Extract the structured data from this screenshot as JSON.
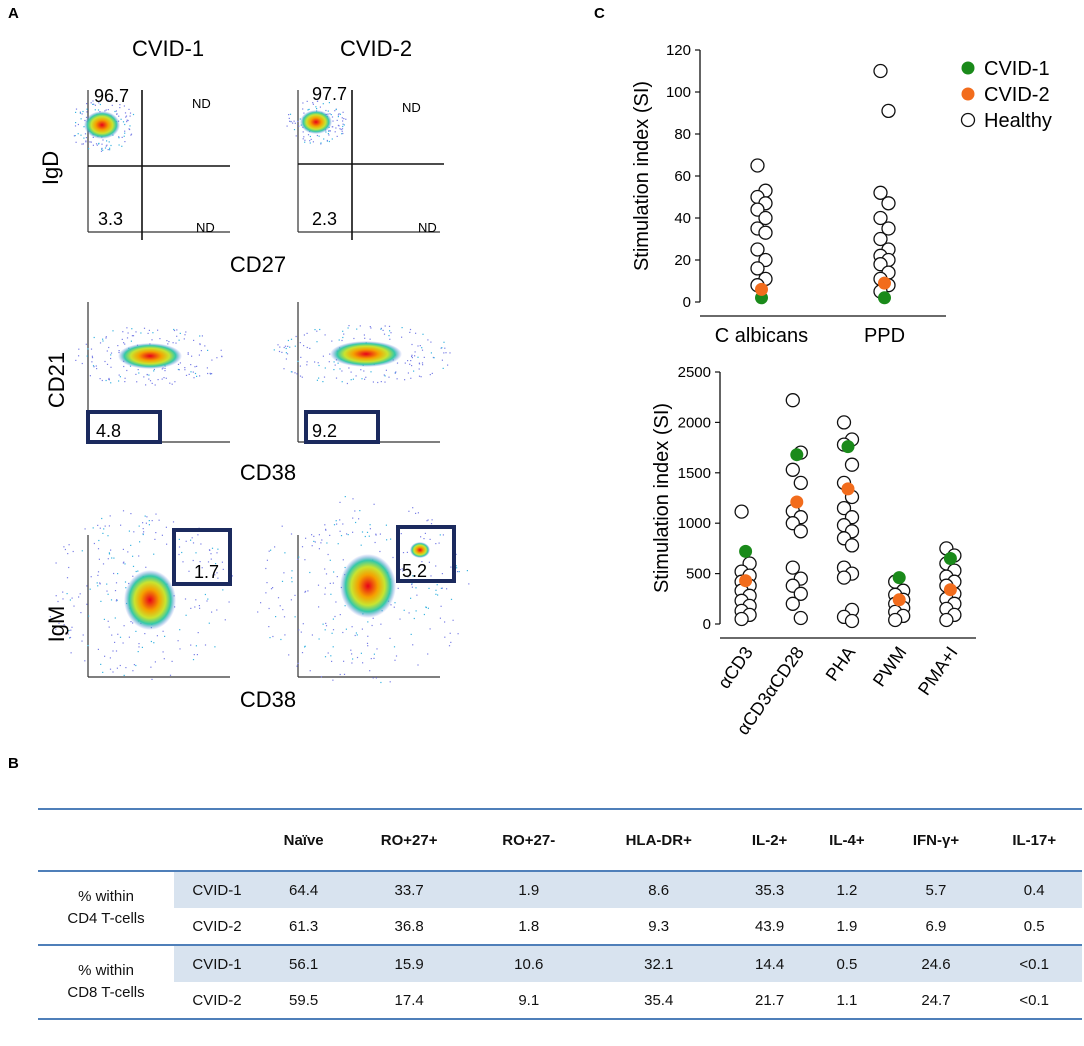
{
  "panels": {
    "a": "A",
    "b": "B",
    "c": "C"
  },
  "flow": {
    "columns": [
      "CVID-1",
      "CVID-2"
    ],
    "rows": [
      {
        "ylabel": "IgD",
        "xlabel": "CD27",
        "plots": [
          {
            "q_tl": "96.7",
            "q_tr": "ND",
            "q_bl": "3.3",
            "q_br": "ND"
          },
          {
            "q_tl": "97.7",
            "q_tr": "ND",
            "q_bl": "2.3",
            "q_br": "ND"
          }
        ]
      },
      {
        "ylabel": "CD21",
        "xlabel": "CD38",
        "plots": [
          {
            "gate": "4.8"
          },
          {
            "gate": "9.2"
          }
        ]
      },
      {
        "ylabel": "IgM",
        "xlabel": "CD38",
        "plots": [
          {
            "gate": "1.7"
          },
          {
            "gate": "5.2"
          }
        ]
      }
    ]
  },
  "table": {
    "headers": [
      "Naïve",
      "RO+27+",
      "RO+27-",
      "HLA-DR+",
      "IL-2+",
      "IL-4+",
      "IFN-γ+",
      "IL-17+"
    ],
    "groups": [
      {
        "label_line1": "% within",
        "label_line2": "CD4 T-cells",
        "rows": [
          {
            "name": "CVID-1",
            "values": [
              "64.4",
              "33.7",
              "1.9",
              "8.6",
              "35.3",
              "1.2",
              "5.7",
              "0.4"
            ]
          },
          {
            "name": "CVID-2",
            "values": [
              "61.3",
              "36.8",
              "1.8",
              "9.3",
              "43.9",
              "1.9",
              "6.9",
              "0.5"
            ]
          }
        ]
      },
      {
        "label_line1": "% within",
        "label_line2": "CD8 T-cells",
        "rows": [
          {
            "name": "CVID-1",
            "values": [
              "56.1",
              "15.9",
              "10.6",
              "32.1",
              "14.4",
              "0.5",
              "24.6",
              "<0.1"
            ]
          },
          {
            "name": "CVID-2",
            "values": [
              "59.5",
              "17.4",
              "9.1",
              "35.4",
              "21.7",
              "1.1",
              "24.7",
              "<0.1"
            ]
          }
        ]
      }
    ]
  },
  "colors": {
    "cvid1": "#1a8a1a",
    "cvid2": "#f26c1c",
    "healthy": "#ffffff",
    "gate": "#1b2a5e",
    "rule": "#4f7fb9",
    "stripe": "#d8e3ef"
  },
  "chart_data": [
    {
      "type": "scatter",
      "title": "",
      "xlabel": "",
      "ylabel": "Stimulation index (SI)",
      "categories": [
        "C albicans",
        "PPD"
      ],
      "ylim": [
        0,
        120
      ],
      "yticks": [
        0,
        20,
        40,
        60,
        80,
        100,
        120
      ],
      "legend": [
        "CVID-1",
        "CVID-2",
        "Healthy"
      ],
      "legend_position": "top-right",
      "series": [
        {
          "name": "Healthy",
          "values": [
            [
              65,
              53,
              50,
              47,
              44,
              40,
              35,
              33,
              25,
              20,
              16,
              11,
              8
            ],
            [
              110,
              91,
              52,
              47,
              40,
              35,
              30,
              25,
              22,
              20,
              18,
              14,
              11,
              8,
              5
            ]
          ]
        },
        {
          "name": "CVID-1",
          "values": [
            [
              2
            ],
            [
              2
            ]
          ]
        },
        {
          "name": "CVID-2",
          "values": [
            [
              6
            ],
            [
              9
            ]
          ]
        }
      ]
    },
    {
      "type": "scatter",
      "title": "",
      "xlabel": "",
      "ylabel": "Stimulation  index (SI)",
      "categories": [
        "αCD3",
        "αCD3αCD28",
        "PHA",
        "PWM",
        "PMA+I"
      ],
      "ylim": [
        0,
        2500
      ],
      "yticks": [
        0,
        500,
        1000,
        1500,
        2000,
        2500
      ],
      "series": [
        {
          "name": "Healthy",
          "values": [
            [
              1115,
              600,
              520,
              480,
              420,
              380,
              330,
              280,
              230,
              180,
              130,
              90,
              50
            ],
            [
              2220,
              1700,
              1530,
              1400,
              1120,
              1060,
              1000,
              920,
              560,
              450,
              380,
              300,
              200,
              60
            ],
            [
              2000,
              1830,
              1780,
              1580,
              1400,
              1260,
              1150,
              1060,
              980,
              920,
              850,
              780,
              560,
              500,
              460,
              140,
              70,
              30
            ],
            [
              420,
              330,
              290,
              240,
              200,
              160,
              120,
              80,
              40
            ],
            [
              750,
              680,
              600,
              530,
              470,
              420,
              380,
              300,
              250,
              200,
              150,
              90,
              40
            ]
          ]
        },
        {
          "name": "CVID-1",
          "values": [
            [
              720
            ],
            [
              1680
            ],
            [
              1760
            ],
            [
              460
            ],
            [
              650
            ]
          ]
        },
        {
          "name": "CVID-2",
          "values": [
            [
              430
            ],
            [
              1210
            ],
            [
              1340
            ],
            [
              240
            ],
            [
              340
            ]
          ]
        }
      ]
    }
  ]
}
